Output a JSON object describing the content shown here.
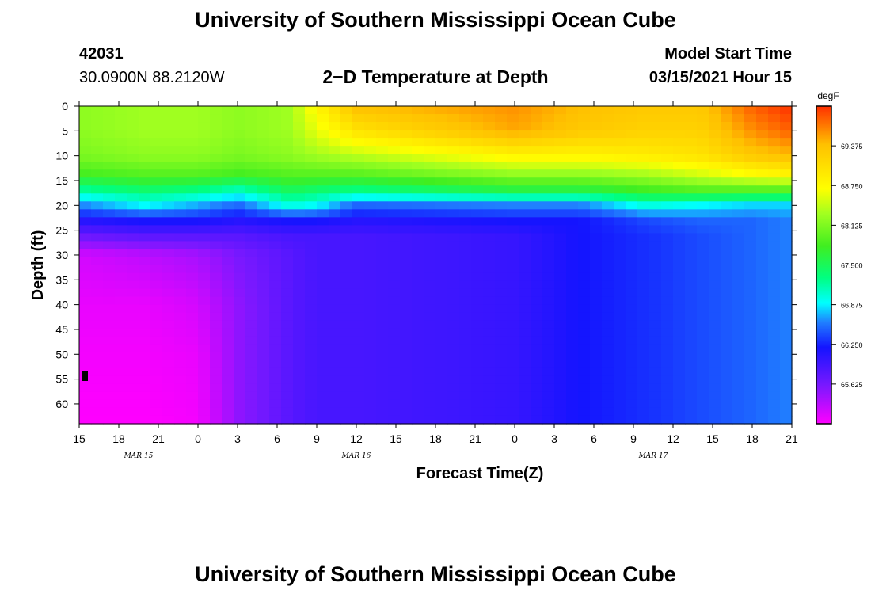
{
  "header": {
    "title_top": "University of Southern Mississippi Ocean Cube",
    "station_id": "42031",
    "station_coords": "30.0900N 88.2120W",
    "plot_title": "2−D Temperature at Depth",
    "model_label": "Model Start Time",
    "model_start": "03/15/2021 Hour 15",
    "title_bottom": "University of Southern Mississippi Ocean Cube"
  },
  "chart_data": {
    "type": "heatmap",
    "title": "2−D Temperature at Depth",
    "xlabel": "Forecast Time(Z)",
    "ylabel": "Depth (ft)",
    "colorbar_unit": "degF",
    "x_tick_labels": [
      "15",
      "18",
      "21",
      "0",
      "3",
      "6",
      "9",
      "12",
      "15",
      "18",
      "21",
      "0",
      "3",
      "6",
      "9",
      "12",
      "15",
      "18",
      "21"
    ],
    "x_hours_from_start": [
      0,
      3,
      6,
      9,
      12,
      15,
      18,
      21,
      24,
      27,
      30,
      33,
      36,
      39,
      42,
      45,
      48,
      51,
      54
    ],
    "date_labels": [
      {
        "label": "MAR 15",
        "hour": 4.5
      },
      {
        "label": "MAR 16",
        "hour": 21
      },
      {
        "label": "MAR 17",
        "hour": 43.5
      }
    ],
    "y_ticks": [
      0,
      5,
      10,
      15,
      20,
      25,
      30,
      35,
      40,
      45,
      50,
      55,
      60
    ],
    "y_tick_labels": [
      "0",
      "5",
      "10",
      "15",
      "20",
      "25",
      "30",
      "35",
      "40",
      "45",
      "50",
      "55",
      "60"
    ],
    "ylim": [
      0,
      64
    ],
    "xlim_hours": [
      0,
      54
    ],
    "color_ticks": [
      "69.375",
      "68.750",
      "68.125",
      "67.500",
      "66.875",
      "66.250",
      "65.625"
    ],
    "color_scale": {
      "min": 65.0,
      "max": 70.0,
      "stops": [
        {
          "v": 65.0,
          "c": "#ff00ff"
        },
        {
          "v": 65.6,
          "c": "#7a18ff"
        },
        {
          "v": 66.2,
          "c": "#1414ff"
        },
        {
          "v": 66.6,
          "c": "#2080ff"
        },
        {
          "v": 66.9,
          "c": "#00ffff"
        },
        {
          "v": 67.3,
          "c": "#00ff80"
        },
        {
          "v": 67.8,
          "c": "#40ee20"
        },
        {
          "v": 68.3,
          "c": "#a0ff20"
        },
        {
          "v": 68.7,
          "c": "#ffff00"
        },
        {
          "v": 69.4,
          "c": "#ffc000"
        },
        {
          "v": 70.0,
          "c": "#ff3000"
        }
      ]
    },
    "depth_profile_ft": [
      0,
      5,
      10,
      14,
      17,
      20,
      23,
      26,
      30,
      40,
      50,
      64
    ],
    "columns": [
      {
        "hour": 0,
        "temps": [
          68.2,
          68.2,
          68.1,
          67.8,
          67.2,
          66.6,
          66.1,
          65.7,
          65.2,
          65.1,
          65.05,
          65.0
        ]
      },
      {
        "hour": 5,
        "temps": [
          68.3,
          68.3,
          68.2,
          67.9,
          67.4,
          66.9,
          66.2,
          65.8,
          65.3,
          65.1,
          65.05,
          65.0
        ]
      },
      {
        "hour": 9,
        "temps": [
          68.3,
          68.3,
          68.2,
          67.9,
          67.3,
          66.7,
          66.2,
          65.8,
          65.4,
          65.2,
          65.1,
          65.05
        ]
      },
      {
        "hour": 12,
        "temps": [
          68.2,
          68.2,
          68.1,
          67.8,
          67.1,
          66.5,
          66.1,
          65.8,
          65.6,
          65.5,
          65.5,
          65.5
        ]
      },
      {
        "hour": 16,
        "temps": [
          68.3,
          68.3,
          68.2,
          67.9,
          67.5,
          67.0,
          66.2,
          65.9,
          65.8,
          65.8,
          65.8,
          65.8
        ]
      },
      {
        "hour": 18,
        "temps": [
          68.8,
          68.6,
          68.3,
          67.9,
          67.4,
          66.9,
          66.2,
          65.9,
          65.9,
          65.9,
          65.9,
          65.9
        ]
      },
      {
        "hour": 21,
        "temps": [
          69.4,
          69.0,
          68.4,
          67.9,
          67.3,
          66.5,
          66.1,
          65.9,
          65.9,
          65.9,
          65.9,
          65.9
        ]
      },
      {
        "hour": 33,
        "temps": [
          69.6,
          69.5,
          68.8,
          68.2,
          67.6,
          66.6,
          66.2,
          66.0,
          66.0,
          66.0,
          66.0,
          66.0
        ]
      },
      {
        "hour": 38,
        "temps": [
          69.4,
          69.3,
          68.8,
          68.2,
          67.6,
          66.6,
          66.2,
          66.2,
          66.2,
          66.2,
          66.2,
          66.2
        ]
      },
      {
        "hour": 43,
        "temps": [
          69.3,
          69.2,
          68.9,
          68.3,
          67.8,
          67.0,
          66.4,
          66.3,
          66.3,
          66.3,
          66.3,
          66.3
        ]
      },
      {
        "hour": 47,
        "temps": [
          69.3,
          69.2,
          69.0,
          68.5,
          67.9,
          66.9,
          66.5,
          66.4,
          66.4,
          66.4,
          66.4,
          66.4
        ]
      },
      {
        "hour": 51,
        "temps": [
          69.8,
          69.6,
          69.3,
          68.7,
          67.9,
          66.8,
          66.5,
          66.5,
          66.5,
          66.5,
          66.5,
          66.5
        ]
      },
      {
        "hour": 54,
        "temps": [
          70.0,
          69.8,
          69.4,
          68.8,
          67.9,
          66.8,
          66.6,
          66.6,
          66.6,
          66.6,
          66.6,
          66.6
        ]
      }
    ]
  }
}
